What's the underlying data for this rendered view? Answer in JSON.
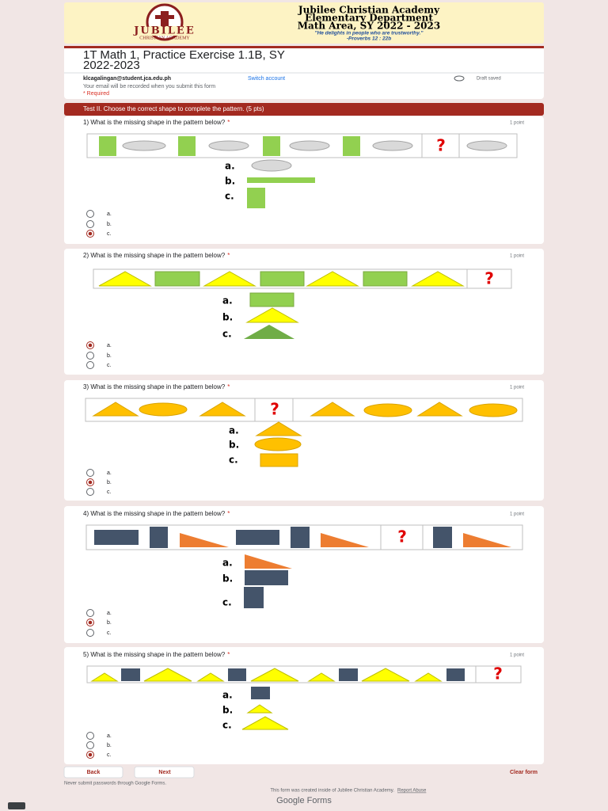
{
  "header": {
    "logo_text": "JUBILEE",
    "logo_sub": "CHRISTIAN ACADEMY",
    "school": "Jubilee Christian Academy",
    "department": "Elementary Department",
    "area": "Math Area, SY 2022 - 2023",
    "motto": "\"He delights in people who are trustworthy.\"",
    "verse": "-Proverbs 12 : 22b"
  },
  "form": {
    "title_line1": "1T Math 1, Practice Exercise 1.1B, SY",
    "title_line2": "2022-2023",
    "email": "klcagalingan@student.jca.edu.ph",
    "switch_account": "Switch account",
    "draft_saved": "Draft saved",
    "recorded_note": "Your email will be recorded when you submit this form",
    "required": "* Required"
  },
  "section": {
    "title": "Test II. Choose the correct shape to complete the pattern. (5 pts)"
  },
  "questions": [
    {
      "text": "1) What is the missing shape in the pattern below?",
      "required": "*",
      "points": "1 point",
      "options": [
        "a.",
        "b.",
        "c."
      ],
      "selected": 2
    },
    {
      "text": "2) What is the missing shape in the pattern below?",
      "required": "*",
      "points": "1 point",
      "options": [
        "a.",
        "b.",
        "c."
      ],
      "selected": 0
    },
    {
      "text": "3) What is the missing shape in the pattern below?",
      "required": "*",
      "points": "1 point",
      "options": [
        "a.",
        "b.",
        "c."
      ],
      "selected": 1
    },
    {
      "text": "4) What is the missing shape in the pattern below?",
      "required": "*",
      "points": "1 point",
      "options": [
        "a.",
        "b.",
        "c."
      ],
      "selected": 1
    },
    {
      "text": "5) What is the missing shape in the pattern below?",
      "required": "*",
      "points": "1 point",
      "options": [
        "a.",
        "b.",
        "c."
      ],
      "selected": 2
    }
  ],
  "missing_mark": "?",
  "buttons": {
    "back": "Back",
    "next": "Next",
    "clear": "Clear form"
  },
  "footer": {
    "never_submit": "Never submit passwords through Google Forms.",
    "created": "This form was created inside of Jubilee Christian Academy.",
    "report": "Report Abuse",
    "brand": "Google Forms"
  }
}
